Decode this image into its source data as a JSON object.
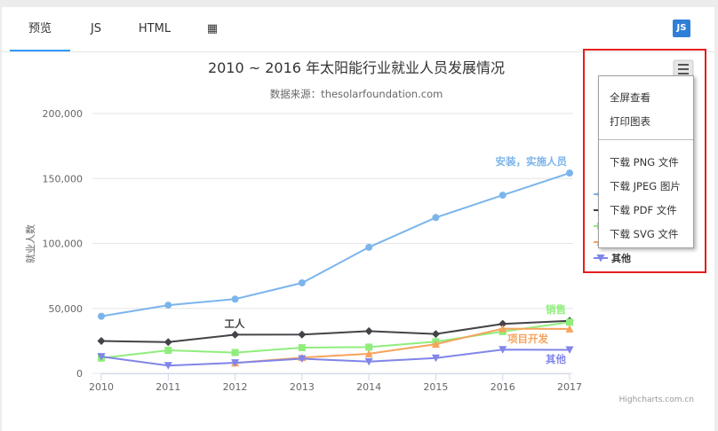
{
  "tabs": [
    "预览",
    "JS",
    "HTML",
    "▦"
  ],
  "js_badge": "JS",
  "chart_data": {
    "type": "line",
    "title": "2010 ~ 2016 年太阳能行业就业人员发展情况",
    "subtitle": "数据来源：thesolarfoundation.com",
    "ylabel": "就业人数",
    "xlabel": "",
    "x": [
      2010,
      2011,
      2012,
      2013,
      2014,
      2015,
      2016,
      2017
    ],
    "ylim": [
      0,
      200000
    ],
    "yticks": [
      0,
      50000,
      100000,
      150000,
      200000
    ],
    "ytick_labels": [
      "0",
      "50,000",
      "100,000",
      "150,000",
      "200,000"
    ],
    "xtick_labels": [
      "2010",
      "2011",
      "2012",
      "2013",
      "2014",
      "2015",
      "2016",
      "2017"
    ],
    "grid": true,
    "legend_placement": "right",
    "credits": "Highcharts.com.cn",
    "series": [
      {
        "name": "安装，实施人员",
        "color": "#7cb5ec",
        "marker": "circle",
        "values": [
          43934,
          52503,
          57177,
          69658,
          97031,
          119931,
          137133,
          154175
        ],
        "label": "安装，实施人员"
      },
      {
        "name": "工人",
        "color": "#434348",
        "marker": "diamond",
        "values": [
          24916,
          24064,
          29742,
          29851,
          32490,
          30282,
          38121,
          40434
        ],
        "label": "工人"
      },
      {
        "name": "销售",
        "color": "#90ed7d",
        "marker": "square",
        "values": [
          11744,
          17722,
          16005,
          19771,
          20185,
          24377,
          32147,
          39387
        ],
        "label": "销售"
      },
      {
        "name": "项目开发",
        "color": "#f7a35c",
        "marker": "triangle",
        "values": [
          null,
          null,
          7988,
          12169,
          15112,
          22452,
          34400,
          34227
        ],
        "label": "项目开发"
      },
      {
        "name": "其他",
        "color": "#8085e9",
        "marker": "triangle-down",
        "values": [
          12908,
          5948,
          8105,
          11248,
          8989,
          11816,
          18274,
          18111
        ],
        "label": "其他"
      }
    ]
  },
  "context_menu": {
    "items": [
      "全屏查看",
      "打印图表",
      "下载 PNG 文件",
      "下载 JPEG 图片",
      "下载 PDF 文件",
      "下载 SVG 文件"
    ]
  },
  "legend_visible_label": "其他"
}
